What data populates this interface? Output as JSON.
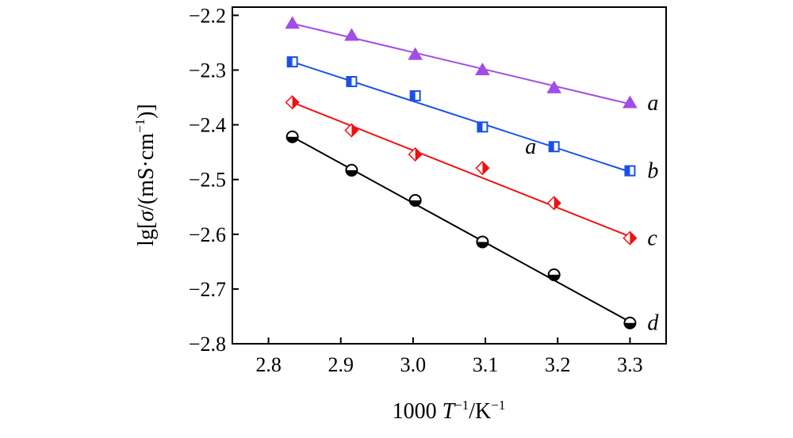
{
  "chart_data": {
    "type": "scatter",
    "title": "",
    "xlabel": {
      "prefix": "1000 ",
      "T": "T",
      "exp1": "−1",
      "mid": "/K",
      "exp2": "−1"
    },
    "ylabel": {
      "pre": "lg[",
      "sigma": "σ",
      "mid": "/(mS·cm",
      "exp": "−1",
      "post": ")]"
    },
    "xlim": [
      2.75,
      3.35
    ],
    "ylim": [
      -2.8,
      -2.185
    ],
    "xticks": [
      2.8,
      2.9,
      3.0,
      3.1,
      3.2,
      3.3
    ],
    "xtick_labels": [
      "2.8",
      "2.9",
      "3.0",
      "3.1",
      "3.2",
      "3.3"
    ],
    "yticks": [
      -2.2,
      -2.3,
      -2.4,
      -2.5,
      -2.6,
      -2.7,
      -2.8
    ],
    "ytick_labels": [
      "−2.2",
      "−2.3",
      "−2.4",
      "−2.5",
      "−2.6",
      "−2.7",
      "−2.8"
    ],
    "x": [
      2.833,
      2.915,
      3.003,
      3.096,
      3.195,
      3.3
    ],
    "series": [
      {
        "name": "a",
        "label": "a",
        "marker": "triangle",
        "color": "#a24de6",
        "values": [
          -2.215,
          -2.237,
          -2.272,
          -2.3,
          -2.333,
          -2.36
        ],
        "fit": [
          -2.215,
          -2.362
        ]
      },
      {
        "name": "b",
        "label": "b",
        "marker": "square",
        "color": "#1a50e8",
        "values": [
          -2.285,
          -2.321,
          -2.347,
          -2.404,
          -2.44,
          -2.484
        ],
        "fit": [
          -2.285,
          -2.486
        ]
      },
      {
        "name": "c",
        "label": "c",
        "marker": "diamond",
        "color": "#f01010",
        "values": [
          -2.359,
          -2.41,
          -2.454,
          -2.479,
          -2.543,
          -2.607
        ],
        "fit": [
          -2.359,
          -2.604
        ]
      },
      {
        "name": "d",
        "label": "d",
        "marker": "circle",
        "color": "#000000",
        "values": [
          -2.422,
          -2.483,
          -2.538,
          -2.614,
          -2.674,
          -2.762
        ],
        "fit": [
          -2.422,
          -2.76
        ]
      }
    ],
    "annotations": [
      {
        "text": "a",
        "x": 3.155,
        "y": -2.44
      }
    ]
  }
}
